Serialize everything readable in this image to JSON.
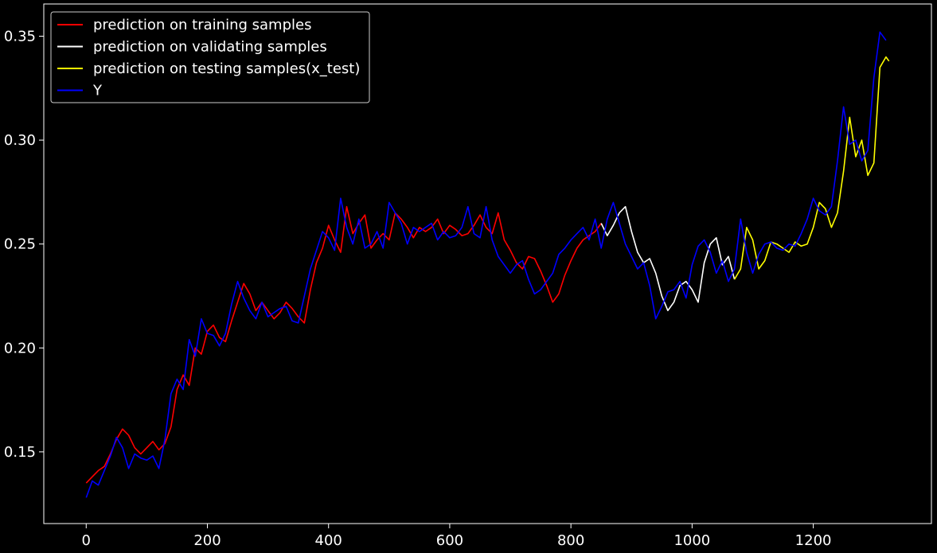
{
  "chart_data": {
    "type": "line",
    "title": "",
    "xlabel": "",
    "ylabel": "",
    "xlim": [
      -70,
      1395
    ],
    "ylim": [
      0.1155,
      0.3655
    ],
    "x_ticks": [
      0,
      200,
      400,
      600,
      800,
      1000,
      1200
    ],
    "y_ticks": [
      0.15,
      0.2,
      0.25,
      0.3,
      0.35
    ],
    "x_tick_labels": [
      "0",
      "200",
      "400",
      "600",
      "800",
      "1000",
      "1200"
    ],
    "y_tick_labels": [
      "0.15",
      "0.20",
      "0.25",
      "0.30",
      "0.35"
    ],
    "grid": false,
    "legend_position": "top-left",
    "background": "#000000",
    "foreground": "#ffffff",
    "series": [
      {
        "name": "prediction on training samples",
        "color": "#ff0000",
        "x": [
          0,
          10,
          20,
          30,
          40,
          50,
          60,
          70,
          80,
          90,
          100,
          110,
          120,
          130,
          140,
          150,
          160,
          170,
          180,
          190,
          200,
          210,
          220,
          230,
          240,
          250,
          260,
          270,
          280,
          290,
          300,
          310,
          320,
          330,
          340,
          350,
          360,
          370,
          380,
          390,
          400,
          410,
          420,
          430,
          440,
          450,
          460,
          470,
          480,
          490,
          500,
          510,
          520,
          530,
          540,
          550,
          560,
          570,
          580,
          590,
          600,
          610,
          620,
          630,
          640,
          650,
          660,
          670,
          680,
          690,
          700,
          710,
          720,
          730,
          740,
          750,
          760,
          770,
          780,
          790,
          800,
          810,
          820,
          830,
          840,
          850
        ],
        "y": [
          0.135,
          0.138,
          0.141,
          0.143,
          0.149,
          0.156,
          0.161,
          0.158,
          0.152,
          0.149,
          0.152,
          0.155,
          0.151,
          0.154,
          0.162,
          0.18,
          0.187,
          0.182,
          0.2,
          0.197,
          0.208,
          0.211,
          0.205,
          0.203,
          0.213,
          0.222,
          0.231,
          0.226,
          0.218,
          0.222,
          0.218,
          0.214,
          0.217,
          0.222,
          0.219,
          0.215,
          0.212,
          0.228,
          0.241,
          0.248,
          0.259,
          0.252,
          0.246,
          0.268,
          0.255,
          0.26,
          0.264,
          0.248,
          0.252,
          0.255,
          0.252,
          0.265,
          0.262,
          0.258,
          0.253,
          0.258,
          0.256,
          0.258,
          0.262,
          0.255,
          0.259,
          0.257,
          0.254,
          0.255,
          0.259,
          0.264,
          0.258,
          0.255,
          0.265,
          0.252,
          0.247,
          0.241,
          0.238,
          0.244,
          0.243,
          0.237,
          0.23,
          0.222,
          0.226,
          0.235,
          0.242,
          0.248,
          0.252,
          0.254,
          0.256,
          0.26
        ]
      },
      {
        "name": "prediction on validating samples",
        "color": "#ffffff",
        "x": [
          850,
          860,
          870,
          880,
          890,
          900,
          910,
          920,
          930,
          940,
          950,
          960,
          970,
          980,
          990,
          1000,
          1010,
          1020,
          1030,
          1040,
          1050,
          1060,
          1070
        ],
        "y": [
          0.26,
          0.254,
          0.259,
          0.265,
          0.268,
          0.256,
          0.246,
          0.241,
          0.243,
          0.236,
          0.225,
          0.218,
          0.222,
          0.23,
          0.232,
          0.228,
          0.222,
          0.241,
          0.25,
          0.253,
          0.24,
          0.244,
          0.233
        ]
      },
      {
        "name": "prediction on testing samples(x_test)",
        "color": "#ffff00",
        "x": [
          1070,
          1080,
          1090,
          1100,
          1110,
          1120,
          1130,
          1140,
          1150,
          1160,
          1170,
          1180,
          1190,
          1200,
          1210,
          1220,
          1230,
          1240,
          1250,
          1260,
          1270,
          1280,
          1290,
          1300,
          1310,
          1320,
          1325
        ],
        "y": [
          0.233,
          0.238,
          0.258,
          0.252,
          0.238,
          0.242,
          0.251,
          0.25,
          0.248,
          0.246,
          0.251,
          0.249,
          0.25,
          0.258,
          0.27,
          0.267,
          0.258,
          0.265,
          0.285,
          0.311,
          0.292,
          0.3,
          0.283,
          0.289,
          0.335,
          0.34,
          0.338
        ]
      },
      {
        "name": "Y",
        "color": "#0000ff",
        "x": [
          0,
          10,
          20,
          30,
          40,
          50,
          60,
          70,
          80,
          90,
          100,
          110,
          120,
          130,
          140,
          150,
          160,
          170,
          180,
          190,
          200,
          210,
          220,
          230,
          240,
          250,
          260,
          270,
          280,
          290,
          300,
          310,
          320,
          330,
          340,
          350,
          360,
          370,
          380,
          390,
          400,
          410,
          420,
          430,
          440,
          450,
          460,
          470,
          480,
          490,
          500,
          510,
          520,
          530,
          540,
          550,
          560,
          570,
          580,
          590,
          600,
          610,
          620,
          630,
          640,
          650,
          660,
          670,
          680,
          690,
          700,
          710,
          720,
          730,
          740,
          750,
          760,
          770,
          780,
          790,
          800,
          810,
          820,
          830,
          840,
          850,
          860,
          870,
          880,
          890,
          900,
          910,
          920,
          930,
          940,
          950,
          960,
          970,
          980,
          990,
          1000,
          1010,
          1020,
          1030,
          1040,
          1050,
          1060,
          1070,
          1080,
          1090,
          1100,
          1110,
          1120,
          1130,
          1140,
          1150,
          1160,
          1170,
          1180,
          1190,
          1200,
          1210,
          1220,
          1230,
          1240,
          1250,
          1260,
          1270,
          1280,
          1290,
          1300,
          1310,
          1320
        ],
        "y": [
          0.128,
          0.136,
          0.134,
          0.141,
          0.148,
          0.157,
          0.152,
          0.142,
          0.149,
          0.147,
          0.146,
          0.148,
          0.142,
          0.156,
          0.178,
          0.185,
          0.18,
          0.204,
          0.196,
          0.214,
          0.207,
          0.206,
          0.201,
          0.207,
          0.221,
          0.232,
          0.224,
          0.218,
          0.214,
          0.222,
          0.215,
          0.217,
          0.219,
          0.22,
          0.213,
          0.212,
          0.225,
          0.238,
          0.247,
          0.256,
          0.253,
          0.247,
          0.272,
          0.258,
          0.25,
          0.262,
          0.248,
          0.25,
          0.256,
          0.248,
          0.27,
          0.265,
          0.26,
          0.25,
          0.258,
          0.256,
          0.258,
          0.26,
          0.252,
          0.256,
          0.253,
          0.254,
          0.258,
          0.268,
          0.255,
          0.253,
          0.268,
          0.252,
          0.244,
          0.24,
          0.236,
          0.24,
          0.242,
          0.233,
          0.226,
          0.228,
          0.232,
          0.236,
          0.245,
          0.248,
          0.252,
          0.255,
          0.258,
          0.252,
          0.262,
          0.248,
          0.262,
          0.27,
          0.26,
          0.25,
          0.244,
          0.238,
          0.241,
          0.23,
          0.214,
          0.22,
          0.227,
          0.228,
          0.232,
          0.224,
          0.24,
          0.249,
          0.252,
          0.246,
          0.236,
          0.242,
          0.232,
          0.238,
          0.262,
          0.246,
          0.236,
          0.245,
          0.25,
          0.251,
          0.248,
          0.247,
          0.25,
          0.249,
          0.255,
          0.262,
          0.272,
          0.266,
          0.264,
          0.268,
          0.29,
          0.316,
          0.298,
          0.3,
          0.29,
          0.295,
          0.33,
          0.352,
          0.348
        ]
      }
    ]
  }
}
